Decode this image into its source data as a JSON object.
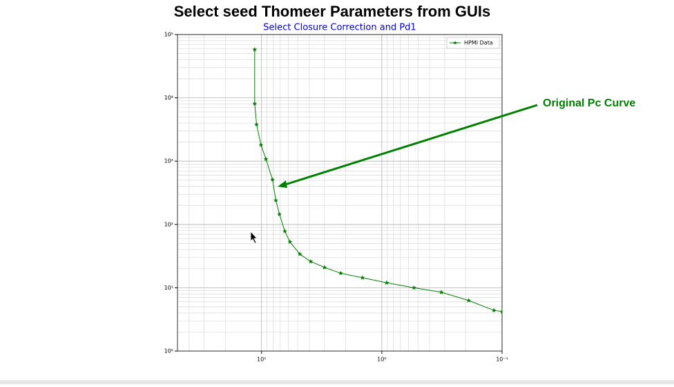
{
  "chart_data": {
    "type": "line",
    "title": "Select seed Thomeer  Parameters from GUIs",
    "subtitle": "Select Closure Correction and Pd1",
    "annotation": "Original Pc Curve",
    "x": [
      11.4,
      11.4,
      11.0,
      10.1,
      9.2,
      8.1,
      7.6,
      7.1,
      6.4,
      5.8,
      4.8,
      3.9,
      3.0,
      2.2,
      1.45,
      0.91,
      0.54,
      0.32,
      0.19,
      0.117,
      0.1
    ],
    "series": [
      {
        "name": "HPMI Data",
        "color": "#008000",
        "values": [
          58000,
          8100,
          3800,
          1800,
          1080,
          510,
          240,
          145,
          78,
          53,
          34,
          26,
          21,
          17,
          14.4,
          12,
          10,
          8.5,
          6.3,
          4.4,
          4.2
        ]
      }
    ],
    "xscale": "log",
    "yscale": "log",
    "xlim": [
      50,
      0.1
    ],
    "ylim": [
      1,
      100000
    ],
    "xticks": [
      {
        "value": 10,
        "label": "10¹"
      },
      {
        "value": 1,
        "label": "10⁰"
      },
      {
        "value": 0.1,
        "label": "10⁻¹"
      }
    ],
    "yticks": [
      {
        "value": 1,
        "label": "10⁰"
      },
      {
        "value": 10,
        "label": "10¹"
      },
      {
        "value": 100,
        "label": "10²"
      },
      {
        "value": 1000,
        "label": "10³"
      },
      {
        "value": 10000,
        "label": "10⁴"
      },
      {
        "value": 100000,
        "label": "10⁵"
      }
    ],
    "grid": true,
    "legend": "upper right"
  }
}
